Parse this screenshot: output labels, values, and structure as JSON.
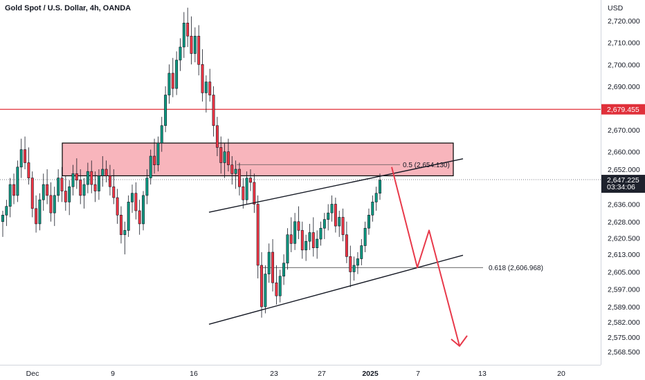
{
  "header": {
    "title": "Gold Spot / U.S. Dollar, 4h, OANDA",
    "currency": "USD"
  },
  "colors": {
    "up": "#089981",
    "down": "#f23645",
    "zone_fill": "#f7a8b0",
    "resistance_line": "#e0303a",
    "arrow": "#e8394a",
    "price_label": "#1e222d"
  },
  "chart_data": {
    "type": "candlestick",
    "symbol": "XAUUSD",
    "timeframe": "4h",
    "ylim": [
      2564,
      2727
    ],
    "y_ticks": [
      "2,720.000",
      "2,710.000",
      "2,700.000",
      "2,690.000",
      "2,670.000",
      "2,660.000",
      "2,652.000",
      "2,636.000",
      "2,628.000",
      "2,620.500",
      "2,613.000",
      "2,605.000",
      "2,597.000",
      "2,589.000",
      "2,582.000",
      "2,575.000",
      "2,568.500"
    ],
    "x_ticks": [
      "Dec",
      "9",
      "16",
      "23",
      "27",
      "2025",
      "7",
      "13",
      "20"
    ],
    "last_price": "2,647.225",
    "countdown": "03:34:06",
    "resistance": {
      "price": 2679.455,
      "label": "2,679.455"
    },
    "zone": {
      "low": 2649,
      "high": 2664
    },
    "fib_levels": [
      {
        "ratio": "0.5",
        "price": 2654.13,
        "label": "0.5 (2,654.130)"
      },
      {
        "ratio": "0.618",
        "price": 2606.968,
        "label": "0.618 (2,606.968)"
      }
    ],
    "channel": {
      "upper": [
        [
          2632.3,
          2656.8
        ]
      ],
      "lower": [
        [
          2581.0,
          2612.6
        ]
      ]
    },
    "projection": [
      2653,
      2607,
      2624,
      2571
    ],
    "candles": [
      [
        2628,
        2633,
        2621,
        2631
      ],
      [
        2631,
        2638,
        2626,
        2635
      ],
      [
        2635,
        2648,
        2630,
        2645
      ],
      [
        2645,
        2650,
        2636,
        2640
      ],
      [
        2640,
        2656,
        2637,
        2653
      ],
      [
        2653,
        2666,
        2648,
        2661
      ],
      [
        2661,
        2667,
        2652,
        2655
      ],
      [
        2655,
        2662,
        2645,
        2648
      ],
      [
        2648,
        2651,
        2630,
        2634
      ],
      [
        2634,
        2640,
        2623,
        2627
      ],
      [
        2627,
        2641,
        2624,
        2638
      ],
      [
        2638,
        2650,
        2633,
        2645
      ],
      [
        2645,
        2652,
        2636,
        2640
      ],
      [
        2640,
        2646,
        2628,
        2632
      ],
      [
        2632,
        2644,
        2626,
        2640
      ],
      [
        2640,
        2652,
        2637,
        2648
      ],
      [
        2648,
        2653,
        2637,
        2642
      ],
      [
        2642,
        2649,
        2633,
        2637
      ],
      [
        2637,
        2647,
        2631,
        2644
      ],
      [
        2644,
        2654,
        2640,
        2650
      ],
      [
        2650,
        2657,
        2643,
        2647
      ],
      [
        2647,
        2652,
        2636,
        2640
      ],
      [
        2640,
        2648,
        2634,
        2645
      ],
      [
        2645,
        2655,
        2641,
        2651
      ],
      [
        2651,
        2656,
        2641,
        2645
      ],
      [
        2645,
        2651,
        2637,
        2642
      ],
      [
        2642,
        2652,
        2638,
        2649
      ],
      [
        2649,
        2658,
        2644,
        2652
      ],
      [
        2652,
        2656,
        2646,
        2649
      ],
      [
        2649,
        2654,
        2640,
        2644
      ],
      [
        2644,
        2652,
        2636,
        2639
      ],
      [
        2639,
        2643,
        2627,
        2631
      ],
      [
        2631,
        2635,
        2618,
        2622
      ],
      [
        2622,
        2628,
        2613,
        2624
      ],
      [
        2624,
        2640,
        2621,
        2637
      ],
      [
        2637,
        2645,
        2632,
        2641
      ],
      [
        2641,
        2646,
        2629,
        2633
      ],
      [
        2633,
        2638,
        2622,
        2627
      ],
      [
        2627,
        2642,
        2624,
        2640
      ],
      [
        2640,
        2652,
        2636,
        2648
      ],
      [
        2648,
        2661,
        2645,
        2658
      ],
      [
        2658,
        2666,
        2650,
        2654
      ],
      [
        2654,
        2667,
        2651,
        2664
      ],
      [
        2664,
        2676,
        2660,
        2672
      ],
      [
        2672,
        2690,
        2669,
        2686
      ],
      [
        2686,
        2700,
        2682,
        2696
      ],
      [
        2696,
        2703,
        2685,
        2689
      ],
      [
        2689,
        2706,
        2686,
        2702
      ],
      [
        2702,
        2712,
        2697,
        2708
      ],
      [
        2708,
        2724,
        2703,
        2719
      ],
      [
        2719,
        2726,
        2708,
        2713
      ],
      [
        2713,
        2722,
        2700,
        2705
      ],
      [
        2705,
        2717,
        2701,
        2713
      ],
      [
        2713,
        2718,
        2695,
        2700
      ],
      [
        2700,
        2707,
        2683,
        2687
      ],
      [
        2687,
        2695,
        2678,
        2692
      ],
      [
        2692,
        2698,
        2683,
        2686
      ],
      [
        2686,
        2690,
        2667,
        2672
      ],
      [
        2672,
        2676,
        2658,
        2662
      ],
      [
        2662,
        2667,
        2650,
        2655
      ],
      [
        2655,
        2664,
        2648,
        2660
      ],
      [
        2660,
        2666,
        2651,
        2654
      ],
      [
        2654,
        2658,
        2645,
        2650
      ],
      [
        2650,
        2656,
        2643,
        2652
      ],
      [
        2652,
        2655,
        2640,
        2644
      ],
      [
        2644,
        2648,
        2634,
        2638
      ],
      [
        2638,
        2651,
        2636,
        2648
      ],
      [
        2648,
        2652,
        2642,
        2646
      ],
      [
        2646,
        2650,
        2632,
        2636
      ],
      [
        2636,
        2640,
        2602,
        2608
      ],
      [
        2608,
        2614,
        2584,
        2589
      ],
      [
        2589,
        2608,
        2586,
        2604
      ],
      [
        2604,
        2618,
        2600,
        2614
      ],
      [
        2614,
        2620,
        2596,
        2600
      ],
      [
        2600,
        2608,
        2590,
        2594
      ],
      [
        2594,
        2606,
        2591,
        2603
      ],
      [
        2603,
        2613,
        2599,
        2609
      ],
      [
        2609,
        2625,
        2606,
        2622
      ],
      [
        2622,
        2630,
        2614,
        2618
      ],
      [
        2618,
        2632,
        2615,
        2628
      ],
      [
        2628,
        2635,
        2620,
        2624
      ],
      [
        2624,
        2628,
        2611,
        2615
      ],
      [
        2615,
        2622,
        2610,
        2619
      ],
      [
        2619,
        2627,
        2615,
        2623
      ],
      [
        2623,
        2630,
        2612,
        2616
      ],
      [
        2616,
        2624,
        2611,
        2620
      ],
      [
        2620,
        2628,
        2617,
        2625
      ],
      [
        2625,
        2632,
        2620,
        2629
      ],
      [
        2629,
        2636,
        2624,
        2632
      ],
      [
        2632,
        2640,
        2628,
        2636
      ],
      [
        2636,
        2639,
        2623,
        2626
      ],
      [
        2626,
        2633,
        2621,
        2630
      ],
      [
        2630,
        2634,
        2619,
        2622
      ],
      [
        2622,
        2628,
        2609,
        2612
      ],
      [
        2612,
        2617,
        2598,
        2605
      ],
      [
        2605,
        2612,
        2601,
        2608
      ],
      [
        2608,
        2614,
        2604,
        2611
      ],
      [
        2611,
        2620,
        2608,
        2617
      ],
      [
        2617,
        2628,
        2614,
        2625
      ],
      [
        2625,
        2634,
        2622,
        2631
      ],
      [
        2631,
        2640,
        2628,
        2637
      ],
      [
        2637,
        2644,
        2633,
        2641
      ],
      [
        2641,
        2650,
        2638,
        2647
      ]
    ]
  }
}
